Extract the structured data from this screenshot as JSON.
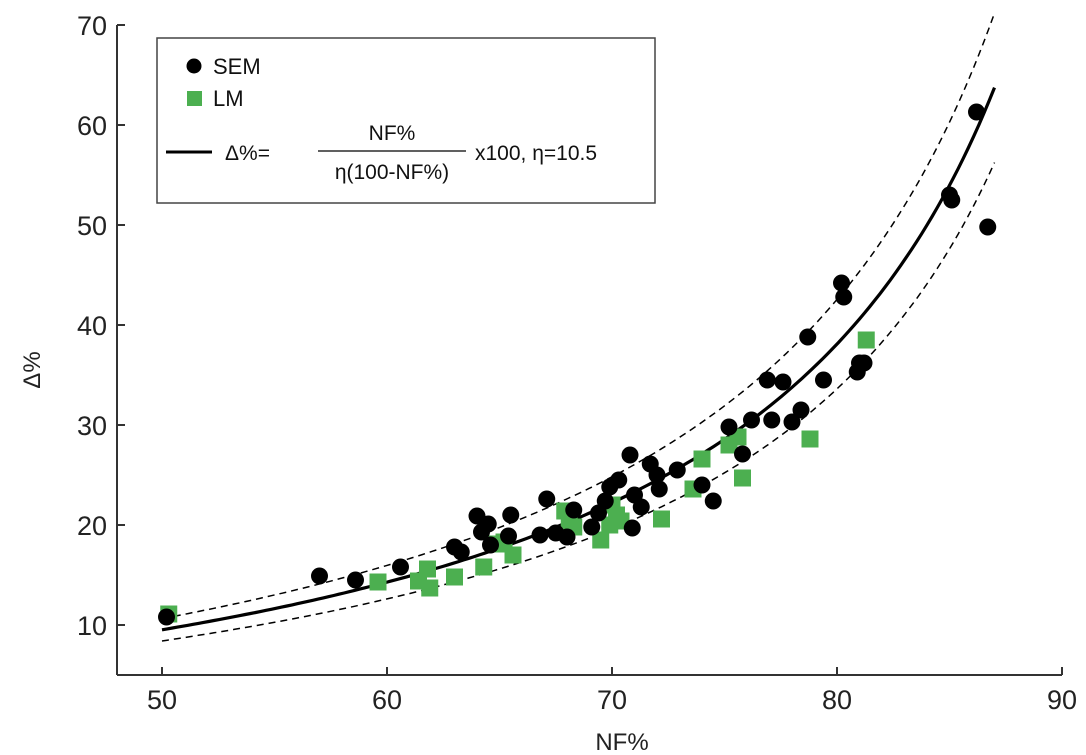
{
  "chart_data": {
    "type": "scatter",
    "title": "",
    "xlabel": "NF%",
    "ylabel": "Δ%",
    "xlim": [
      48,
      90
    ],
    "ylim": [
      5,
      70
    ],
    "xticks": [
      50,
      60,
      70,
      80,
      90
    ],
    "yticks": [
      10,
      20,
      30,
      40,
      50,
      60,
      70
    ],
    "xtick_labels": [
      "50",
      "60",
      "70",
      "80",
      "90"
    ],
    "ytick_labels": [
      "10",
      "20",
      "30",
      "40",
      "50",
      "60",
      "70"
    ],
    "grid": false,
    "legend_position": "top-left",
    "colors": {
      "SEM": "#000000",
      "LM": "#4caf50",
      "fit": "#000000"
    },
    "series": [
      {
        "name": "SEM",
        "marker": "circle",
        "points": [
          [
            50.2,
            10.8
          ],
          [
            57.0,
            14.9
          ],
          [
            58.6,
            14.5
          ],
          [
            60.6,
            15.8
          ],
          [
            63.0,
            17.8
          ],
          [
            63.3,
            17.3
          ],
          [
            64.0,
            20.9
          ],
          [
            64.2,
            19.3
          ],
          [
            64.5,
            20.1
          ],
          [
            64.6,
            18.0
          ],
          [
            65.5,
            21.0
          ],
          [
            65.4,
            18.9
          ],
          [
            66.8,
            19.0
          ],
          [
            67.1,
            22.6
          ],
          [
            67.5,
            19.2
          ],
          [
            68.0,
            18.8
          ],
          [
            68.3,
            21.5
          ],
          [
            69.1,
            19.8
          ],
          [
            69.4,
            21.2
          ],
          [
            69.7,
            22.4
          ],
          [
            69.9,
            23.8
          ],
          [
            70.3,
            24.5
          ],
          [
            70.8,
            27.0
          ],
          [
            70.9,
            19.7
          ],
          [
            71.0,
            23.0
          ],
          [
            71.3,
            21.8
          ],
          [
            71.7,
            26.1
          ],
          [
            72.0,
            25.0
          ],
          [
            72.1,
            23.6
          ],
          [
            72.9,
            25.5
          ],
          [
            74.0,
            24.0
          ],
          [
            74.5,
            22.4
          ],
          [
            75.2,
            29.8
          ],
          [
            75.8,
            27.1
          ],
          [
            76.2,
            30.5
          ],
          [
            76.9,
            34.5
          ],
          [
            77.1,
            30.5
          ],
          [
            77.6,
            34.3
          ],
          [
            78.0,
            30.3
          ],
          [
            78.4,
            31.5
          ],
          [
            78.7,
            38.8
          ],
          [
            79.4,
            34.5
          ],
          [
            80.2,
            44.2
          ],
          [
            80.3,
            42.8
          ],
          [
            80.9,
            35.3
          ],
          [
            81.0,
            36.2
          ],
          [
            81.2,
            36.2
          ],
          [
            85.0,
            53.0
          ],
          [
            85.1,
            52.5
          ],
          [
            86.2,
            61.3
          ],
          [
            86.7,
            49.8
          ]
        ]
      },
      {
        "name": "LM",
        "marker": "square",
        "points": [
          [
            50.3,
            11.1
          ],
          [
            59.6,
            14.3
          ],
          [
            61.4,
            14.4
          ],
          [
            61.8,
            15.6
          ],
          [
            61.9,
            13.7
          ],
          [
            63.0,
            14.8
          ],
          [
            64.3,
            15.8
          ],
          [
            64.9,
            18.1
          ],
          [
            65.2,
            18.3
          ],
          [
            65.6,
            17.0
          ],
          [
            67.9,
            21.4
          ],
          [
            68.1,
            20.1
          ],
          [
            68.3,
            19.8
          ],
          [
            69.5,
            18.5
          ],
          [
            69.9,
            20.0
          ],
          [
            70.0,
            22.0
          ],
          [
            70.2,
            21.0
          ],
          [
            70.4,
            20.4
          ],
          [
            72.2,
            20.6
          ],
          [
            73.6,
            23.6
          ],
          [
            74.0,
            26.6
          ],
          [
            75.2,
            28.0
          ],
          [
            75.6,
            28.8
          ],
          [
            75.8,
            24.7
          ],
          [
            78.8,
            28.6
          ],
          [
            81.3,
            38.5
          ]
        ]
      }
    ],
    "fit": {
      "name": "Δ%=",
      "formula_numerator": "NF%",
      "formula_denominator": "η(100-NF%)",
      "formula_suffix": "x100, η=10.5",
      "eta": 10.5,
      "eta_upper": 9.4,
      "eta_lower": 11.9,
      "x_range": [
        50,
        87
      ]
    }
  }
}
